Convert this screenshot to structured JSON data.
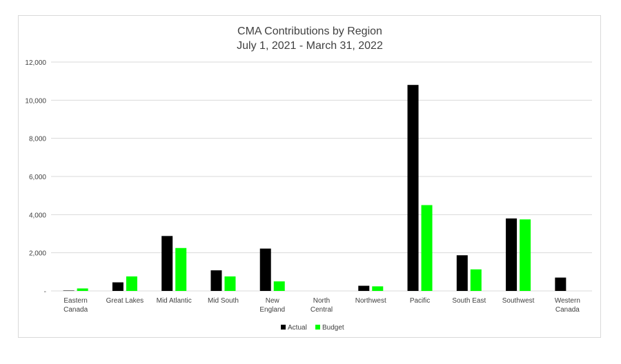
{
  "chart_data": {
    "type": "bar",
    "title": "CMA Contributions by Region",
    "subtitle": "July 1, 2021 - March 31, 2022",
    "categories": [
      [
        "Eastern",
        "Canada"
      ],
      [
        "Great Lakes"
      ],
      [
        "Mid Atlantic"
      ],
      [
        "Mid South"
      ],
      [
        "New",
        "England"
      ],
      [
        "North",
        "Central"
      ],
      [
        "Northwest"
      ],
      [
        "Pacific"
      ],
      [
        "South East"
      ],
      [
        "Southwest"
      ],
      [
        "Western",
        "Canada"
      ]
    ],
    "series": [
      {
        "name": "Actual",
        "color": "#000000",
        "values": [
          20,
          450,
          2880,
          1080,
          2220,
          0,
          270,
          10800,
          1870,
          3800,
          700
        ]
      },
      {
        "name": "Budget",
        "color": "#00ff00",
        "values": [
          130,
          760,
          2250,
          760,
          500,
          0,
          240,
          4500,
          1130,
          3750,
          0
        ]
      }
    ],
    "ylim": [
      0,
      12000
    ],
    "yticks": [
      0,
      2000,
      4000,
      6000,
      8000,
      10000,
      12000
    ],
    "ytick_labels": [
      "-",
      "2,000",
      "4,000",
      "6,000",
      "8,000",
      "10,000",
      "12,000"
    ],
    "gridlines": true,
    "legend_position": "bottom-center",
    "xlabel": "",
    "ylabel": ""
  }
}
